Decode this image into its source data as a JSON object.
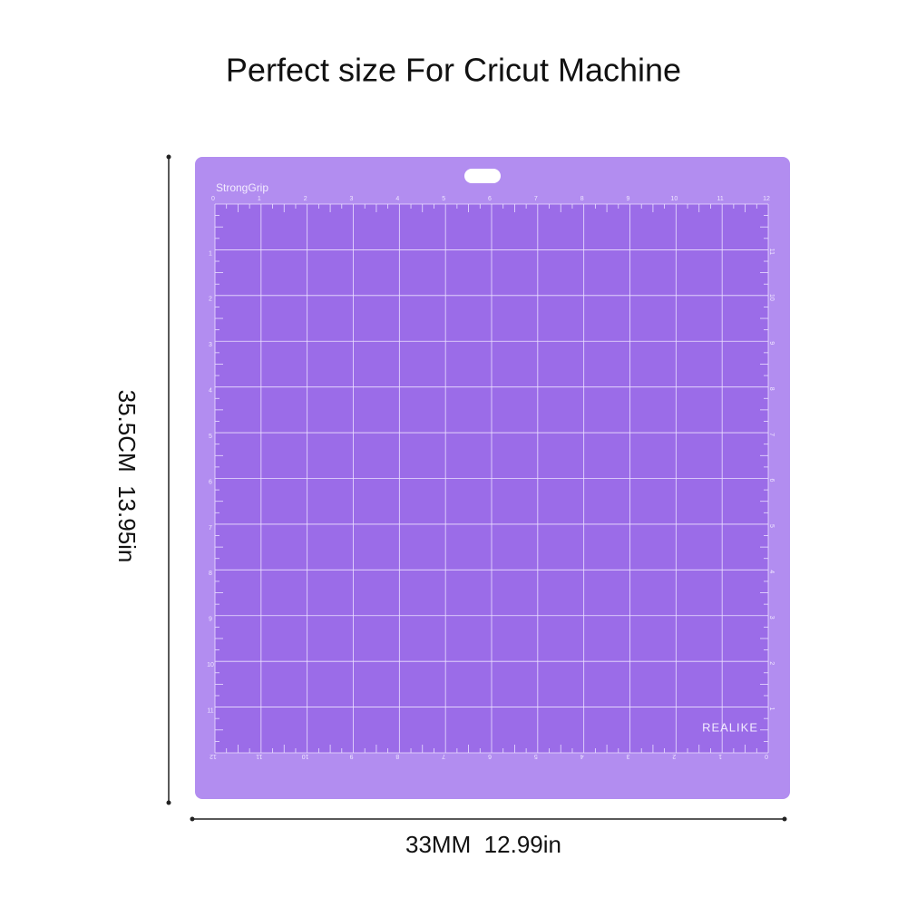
{
  "title": "Perfect size For Cricut Machine",
  "mat": {
    "brand_top": "StrongGrip",
    "brand_bottom": "REALIKE",
    "ruler_top": [
      0,
      1,
      2,
      3,
      4,
      5,
      6,
      7,
      8,
      9,
      10,
      11,
      12
    ],
    "ruler_left": [
      1,
      2,
      3,
      4,
      5,
      6,
      7,
      8,
      9,
      10,
      11
    ],
    "ruler_bottom": [
      12,
      11,
      10,
      9,
      8,
      7,
      6,
      5,
      4,
      3,
      2,
      1,
      0
    ],
    "ruler_right": [
      11,
      10,
      9,
      8,
      7,
      6,
      5,
      4,
      3,
      2,
      1
    ]
  },
  "dimensions": {
    "height": "35.5CM  13.95in",
    "width": "33MM  12.99in"
  }
}
